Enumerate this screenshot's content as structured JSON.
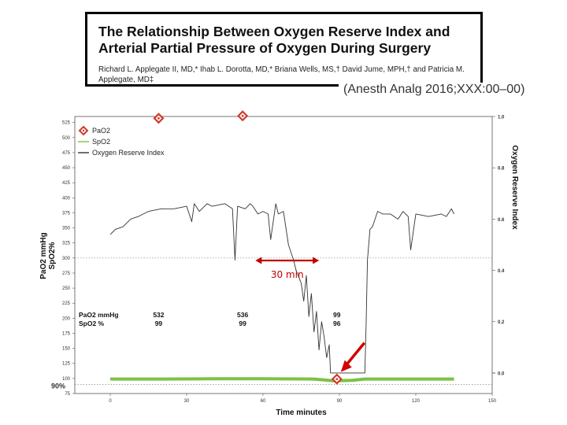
{
  "header": {
    "title": "The Relationship Between Oxygen Reserve Index and Arterial Partial Pressure of Oxygen During Surgery",
    "authors": "Richard L. Applegate II, MD,* Ihab L. Dorotta, MD,* Briana Wells, MS,† David Jume, MPH,† and Patricia M. Applegate, MD‡",
    "citation": "(Anesth Analg 2016;XXX:00–00)"
  },
  "chart_data": {
    "type": "line",
    "xlabel": "Time minutes",
    "ylabel_left": "PaO2 mmHg\nSpO2%",
    "ylabel_right": "Oxygen Reserve Index",
    "x_ticks": [
      0,
      30,
      60,
      90,
      120,
      150
    ],
    "xlim": [
      0,
      150
    ],
    "y_left_ticks": [
      75,
      100,
      125,
      150,
      175,
      200,
      225,
      250,
      275,
      300,
      325,
      350,
      375,
      400,
      425,
      450,
      475,
      500,
      525
    ],
    "ylim_left": [
      75,
      535
    ],
    "y_right_ticks": [
      "0.0",
      "0.2",
      "0.4",
      "0.6",
      "0.8",
      "1.0"
    ],
    "ylim_right": [
      -0.08,
      1.0
    ],
    "legend": {
      "placement": "top-left",
      "entries": [
        {
          "label": "PaO2",
          "color": "#d03a2a",
          "marker": "diamond"
        },
        {
          "label": "SpO2",
          "color": "#7cc242",
          "marker": "line"
        },
        {
          "label": "Oxygen Reserve Index",
          "color": "#333333",
          "marker": "line"
        }
      ]
    },
    "series": [
      {
        "name": "Oxygen Reserve Index",
        "color": "#333333",
        "axis": "right",
        "x": [
          0,
          2,
          5,
          8,
          11,
          15,
          20,
          25,
          30,
          32,
          33,
          35,
          38,
          40,
          45,
          48,
          49,
          50,
          53,
          55,
          56,
          58,
          60,
          62,
          63,
          65,
          66,
          68,
          70,
          72,
          73,
          75,
          76,
          77,
          78,
          79,
          80,
          81,
          82,
          83,
          84,
          85,
          86,
          86.5,
          87,
          90,
          95,
          100,
          100.5,
          101,
          102,
          103,
          105,
          107,
          110,
          113,
          115,
          117,
          118,
          120,
          125,
          130,
          132,
          134,
          135
        ],
        "y": [
          0.54,
          0.56,
          0.57,
          0.6,
          0.61,
          0.63,
          0.64,
          0.64,
          0.65,
          0.59,
          0.66,
          0.63,
          0.66,
          0.65,
          0.66,
          0.64,
          0.44,
          0.65,
          0.64,
          0.66,
          0.65,
          0.62,
          0.63,
          0.62,
          0.52,
          0.66,
          0.62,
          0.63,
          0.5,
          0.44,
          0.4,
          0.35,
          0.28,
          0.38,
          0.22,
          0.31,
          0.16,
          0.24,
          0.09,
          0.2,
          0.14,
          0.06,
          0.11,
          0.0,
          0.0,
          0.0,
          0.0,
          0.0,
          0.2,
          0.44,
          0.56,
          0.57,
          0.63,
          0.62,
          0.62,
          0.6,
          0.63,
          0.61,
          0.48,
          0.62,
          0.61,
          0.62,
          0.61,
          0.64,
          0.62
        ]
      },
      {
        "name": "SpO2",
        "color": "#7cc242",
        "axis": "left",
        "x": [
          0,
          20,
          40,
          60,
          80,
          88,
          95,
          100,
          110,
          120,
          135
        ],
        "y": [
          99,
          99,
          99.5,
          99.5,
          99,
          96,
          97,
          99,
          99,
          99,
          99
        ]
      },
      {
        "name": "PaO2",
        "color": "#d03a2a",
        "axis": "left",
        "x": [
          19,
          52,
          89
        ],
        "y": [
          532,
          536,
          99
        ]
      }
    ],
    "data_table": {
      "rows": [
        {
          "label": "PaO2 mmHg",
          "values": [
            "532",
            "536",
            "99"
          ]
        },
        {
          "label": "SpO2 %",
          "values": [
            "99",
            "99",
            "96"
          ]
        }
      ],
      "x": [
        19,
        52,
        89
      ]
    },
    "reference_lines": [
      {
        "axis": "left",
        "value": 300,
        "style": "dotted"
      },
      {
        "axis": "left",
        "value": 90,
        "style": "dotted",
        "label": "90%"
      }
    ],
    "annotations": [
      {
        "text": "30 min",
        "x_from": 57,
        "x_to": 82,
        "color": "#c00000"
      },
      {
        "text": "",
        "type": "arrow",
        "target_x": 89,
        "target_y": 99,
        "color": "#d00000"
      }
    ]
  }
}
